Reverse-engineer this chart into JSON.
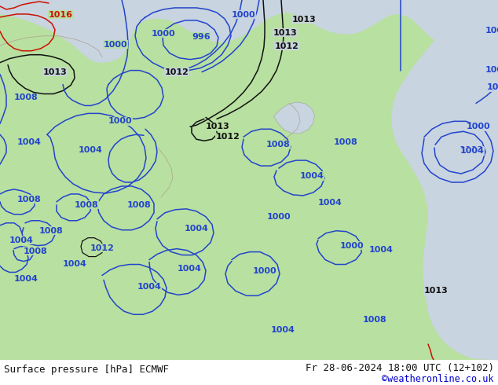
{
  "title_left": "Surface pressure [hPa] ECMWF",
  "title_right": "Fr 28-06-2024 18:00 UTC (12+102)",
  "credit": "©weatheronline.co.uk",
  "bg_color": "#c8d4e0",
  "land_color": "#b8e0a0",
  "border_color": "#a0a0a0",
  "blue_color": "#2244cc",
  "black_color": "#111111",
  "red_color": "#cc1100",
  "footer_bg": "#ffffff",
  "footer_color": "#111111",
  "credit_color": "#0000cc",
  "lw": 1.1
}
